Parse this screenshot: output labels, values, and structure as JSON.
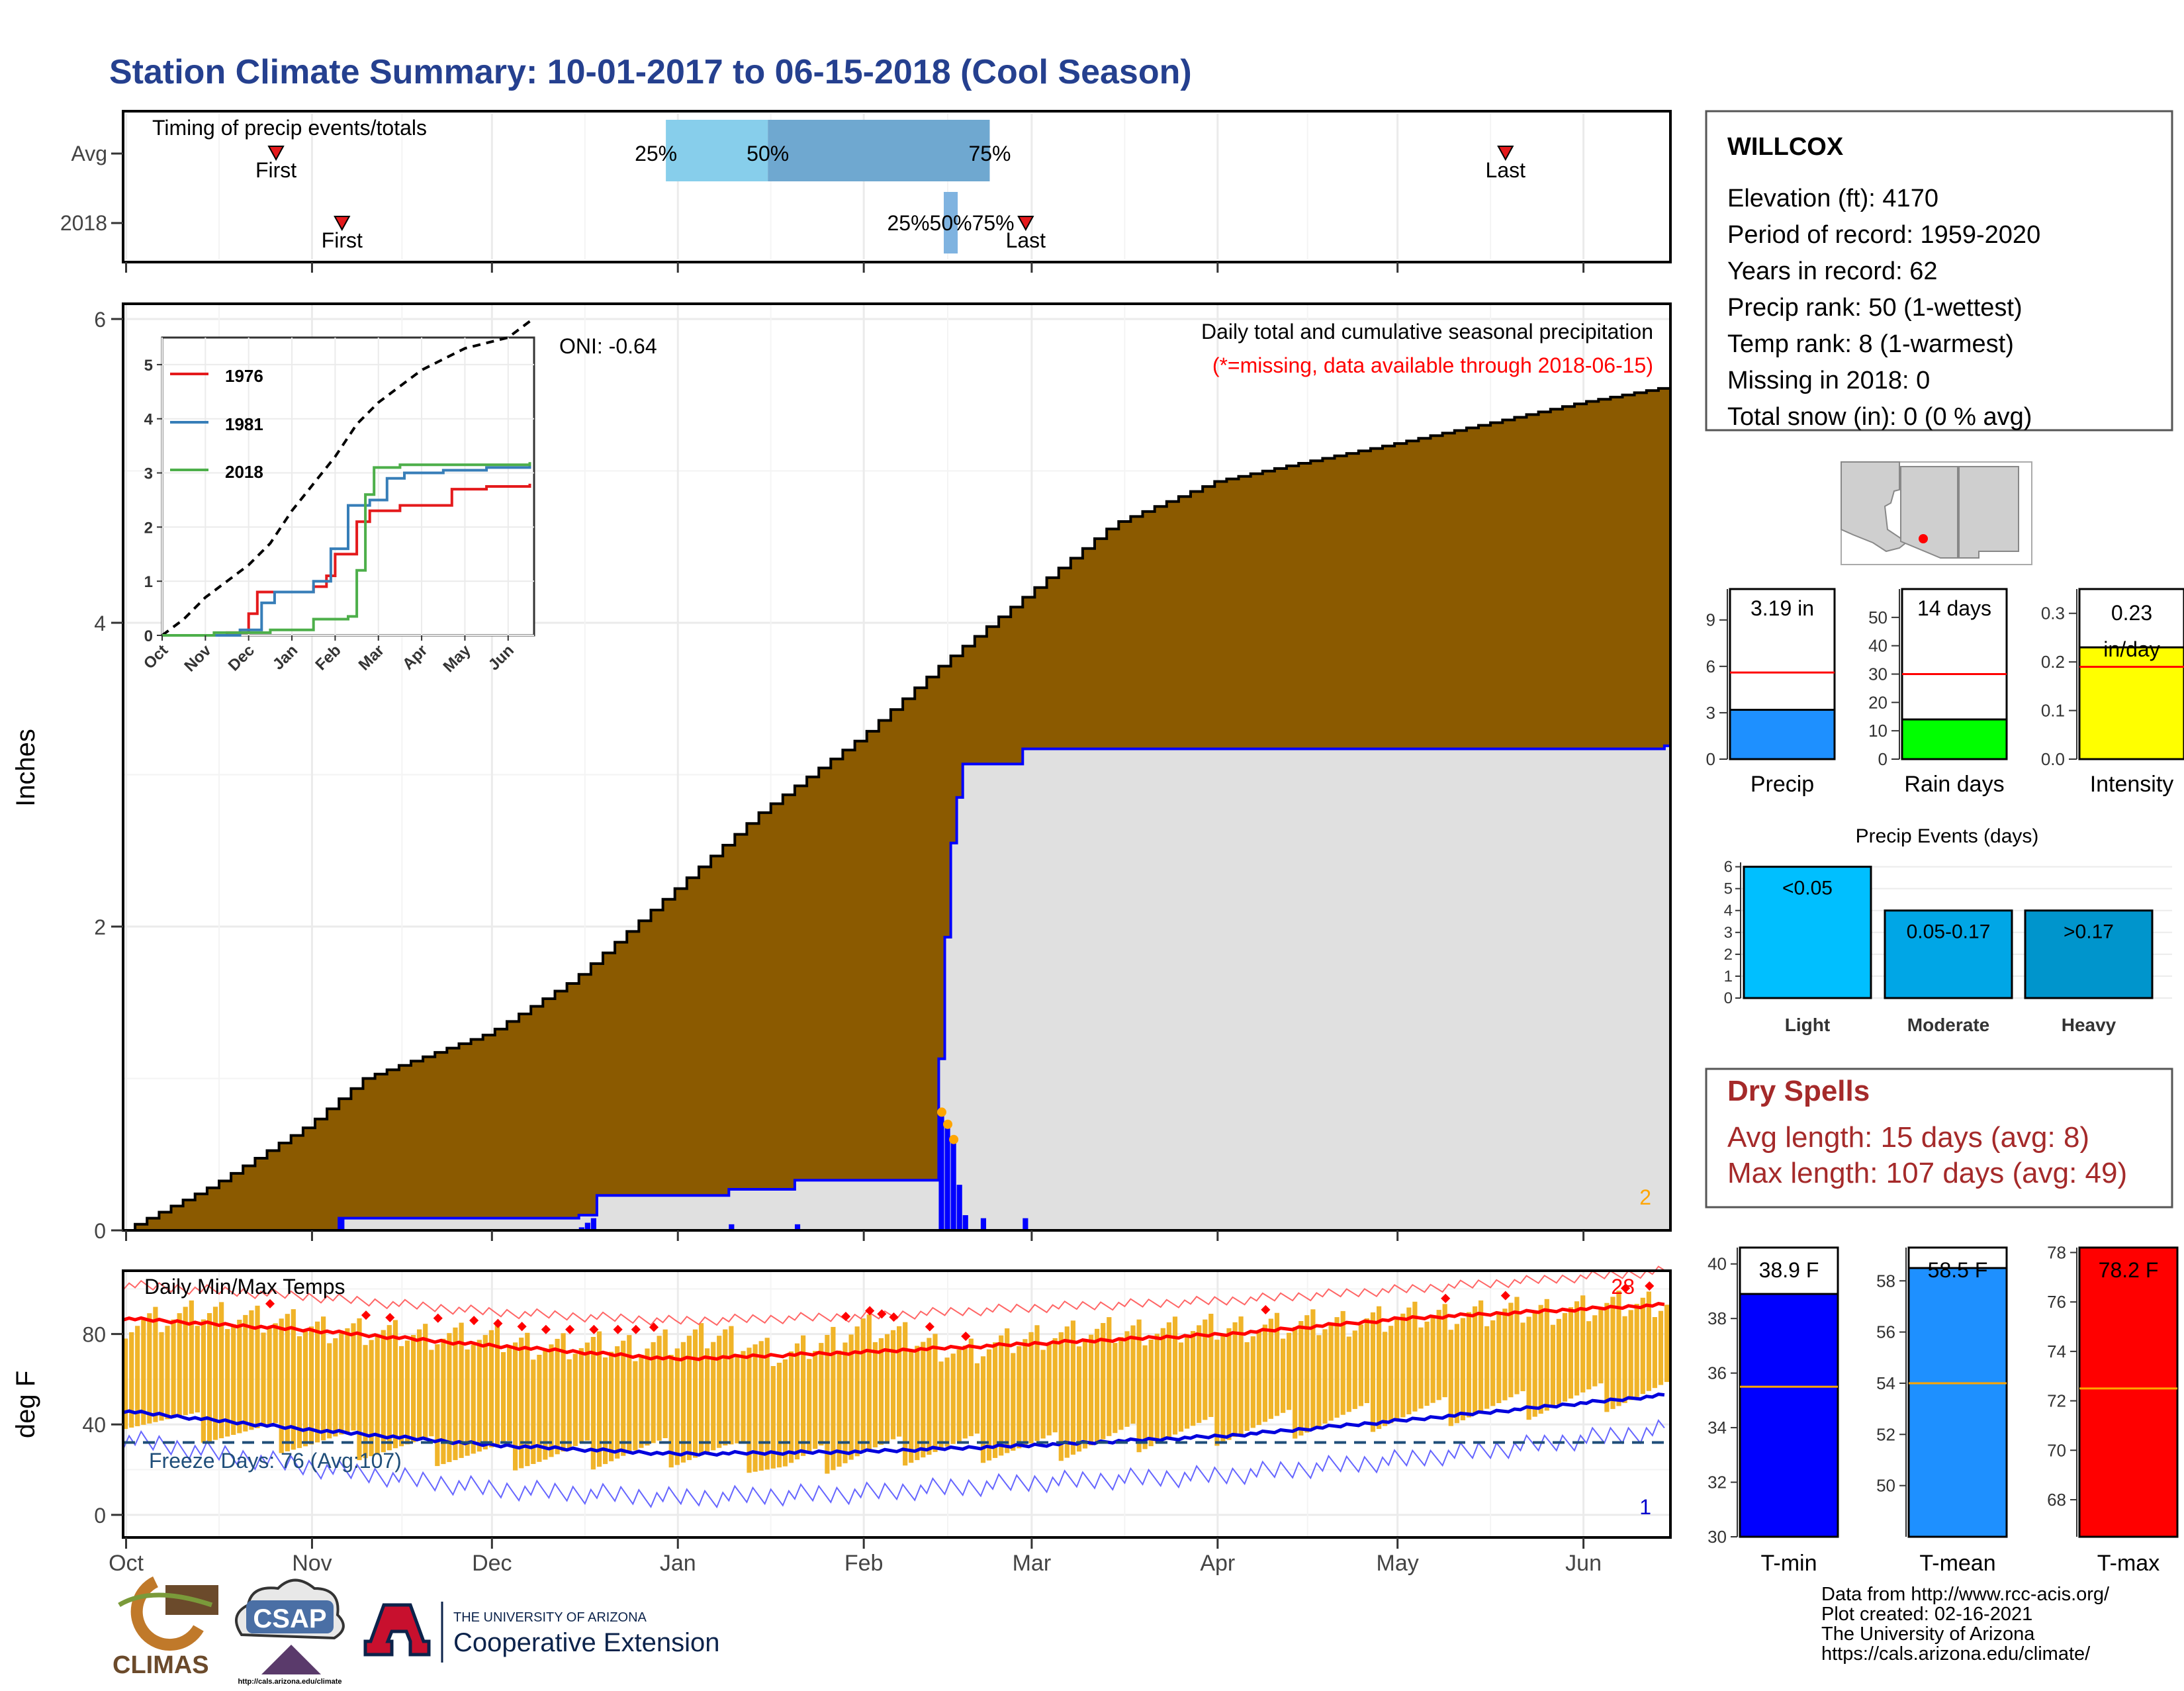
{
  "title": "Station Climate Summary: 10-01-2017 to 06-15-2018 (Cool Season)",
  "timing": {
    "title": "Timing of precip events/totals",
    "rows": [
      "Avg",
      "2018"
    ],
    "avg": {
      "first": "10-26",
      "p25": "12-30",
      "p50": "01-16",
      "p75": "02-22",
      "last": "05-19",
      "p25_label": "25%",
      "p50_label": "50%",
      "p75_label": "75%",
      "first_label": "First",
      "last_label": "Last"
    },
    "y2018": {
      "first": "11-06",
      "p25": "02-15",
      "p50": "02-16",
      "p75": "02-16",
      "last": "02-28",
      "pct_label": "25%50%75%",
      "first_label": "First",
      "last_label": "Last"
    }
  },
  "main_panel": {
    "ylabel": "Inches",
    "yticks": [
      0,
      2,
      4,
      6
    ],
    "legend_line1": "Daily total and cumulative seasonal precipitation",
    "legend_line2": "(*=missing, data available through 2018-06-15)",
    "oni": "ONI: -0.64",
    "corner_count": "2"
  },
  "inset": {
    "yticks": [
      0,
      1,
      2,
      3,
      4,
      5
    ],
    "months": [
      "Oct",
      "Nov",
      "Dec",
      "Jan",
      "Feb",
      "Mar",
      "Apr",
      "May",
      "Jun"
    ],
    "legend": [
      {
        "name": "1976",
        "color": "#e41a1c"
      },
      {
        "name": "1981",
        "color": "#377eb8"
      },
      {
        "name": "2018",
        "color": "#4daf4a"
      }
    ]
  },
  "temp_panel": {
    "title": "Daily Min/Max Temps",
    "ylabel": "deg F",
    "yticks": [
      0,
      40,
      80
    ],
    "freeze_label": "Freeze Days: 76 (Avg:107)",
    "freeze_line": 32,
    "count_top": "28",
    "count_bottom": "1"
  },
  "months": [
    "Oct",
    "Nov",
    "Dec",
    "Jan",
    "Feb",
    "Mar",
    "Apr",
    "May",
    "Jun"
  ],
  "station": {
    "name": "WILLCOX",
    "lines": [
      "Elevation (ft): 4170",
      "Period of record: 1959-2020",
      "Years in record: 62",
      "Precip rank: 50 (1-wettest)",
      "Temp rank: 8 (1-warmest)",
      "Missing in 2018: 0",
      "Total snow (in): 0 (0 % avg)"
    ]
  },
  "precip_bars": [
    {
      "label": "Precip",
      "value": 3.19,
      "avg": 5.6,
      "ymax": 11,
      "ticks": [
        0,
        3,
        6,
        9
      ],
      "text": "3.19 in",
      "color": "#1e90ff"
    },
    {
      "label": "Rain days",
      "value": 14,
      "avg": 30,
      "ymax": 60,
      "ticks": [
        0,
        10,
        20,
        30,
        40,
        50
      ],
      "text": "14 days",
      "color": "#00ff00"
    },
    {
      "label": "Intensity",
      "value": 0.23,
      "avg": 0.19,
      "ymax": 0.35,
      "ticks": [
        0.0,
        0.1,
        0.2,
        0.3
      ],
      "text": "0.23 in/day",
      "color": "#ffff00"
    }
  ],
  "events": {
    "title": "Precip Events (days)",
    "yticks": [
      0,
      1,
      2,
      3,
      4,
      5,
      6
    ],
    "bars": [
      {
        "label": "Light",
        "value": 6,
        "text": "<0.05",
        "color": "#00bfff"
      },
      {
        "label": "Moderate",
        "value": 4,
        "text": "0.05-0.17",
        "color": "#00a6e6"
      },
      {
        "label": "Heavy",
        "value": 4,
        "text": ">0.17",
        "color": "#0095cc"
      }
    ]
  },
  "dry_spells": {
    "title": "Dry Spells",
    "line1": "Avg length: 15 days (avg: 8)",
    "line2": "Max length: 107 days (avg: 49)"
  },
  "temp_bars": [
    {
      "label": "T-min",
      "value": 38.9,
      "avg": 35.5,
      "ymin": 30,
      "ymax": 40.6,
      "ticks": [
        30,
        32,
        34,
        36,
        38,
        40
      ],
      "text": "38.9 F",
      "color": "#0000ff"
    },
    {
      "label": "T-mean",
      "value": 58.5,
      "avg": 54.0,
      "ymin": 48,
      "ymax": 59.3,
      "ticks": [
        50,
        52,
        54,
        56,
        58
      ],
      "text": "58.5 F",
      "color": "#1e90ff"
    },
    {
      "label": "T-max",
      "value": 78.2,
      "avg": 72.5,
      "ymin": 66.5,
      "ymax": 78.2,
      "ticks": [
        68,
        70,
        72,
        74,
        76,
        78
      ],
      "text": "78.2 F",
      "color": "#ff0000"
    }
  ],
  "footer": {
    "lines": [
      "Data from http://www.rcc-acis.org/",
      "Plot created: 02-16-2021",
      "The University of Arizona",
      "https://cals.arizona.edu/climate/"
    ],
    "logo_climas": "CLIMAS",
    "logo_csap": "CSAP",
    "csap_url": "http://cals.arizona.edu/climate",
    "ua_top": "THE UNIVERSITY OF ARIZONA",
    "ua_bottom": "Cooperative Extension"
  },
  "chart_data": {
    "type": "area",
    "season_start": "2017-10-01",
    "season_end": "2018-06-15",
    "avg_cumulative": [
      {
        "date": "2017-10-01",
        "value": 0.0
      },
      {
        "date": "2017-10-16",
        "value": 0.3
      },
      {
        "date": "2017-11-01",
        "value": 0.7
      },
      {
        "date": "2017-11-10",
        "value": 1.0
      },
      {
        "date": "2017-12-01",
        "value": 1.3
      },
      {
        "date": "2017-12-15",
        "value": 1.65
      },
      {
        "date": "2018-01-01",
        "value": 2.25
      },
      {
        "date": "2018-01-15",
        "value": 2.75
      },
      {
        "date": "2018-02-01",
        "value": 3.25
      },
      {
        "date": "2018-02-15",
        "value": 3.75
      },
      {
        "date": "2018-03-01",
        "value": 4.2
      },
      {
        "date": "2018-03-15",
        "value": 4.65
      },
      {
        "date": "2018-04-01",
        "value": 4.93
      },
      {
        "date": "2018-04-15",
        "value": 5.05
      },
      {
        "date": "2018-05-01",
        "value": 5.18
      },
      {
        "date": "2018-05-15",
        "value": 5.3
      },
      {
        "date": "2018-06-01",
        "value": 5.45
      },
      {
        "date": "2018-06-15",
        "value": 5.55
      }
    ],
    "cumulative_2018": [
      {
        "date": "2017-10-01",
        "value": 0.0
      },
      {
        "date": "2017-11-06",
        "value": 0.08
      },
      {
        "date": "2017-12-16",
        "value": 0.1
      },
      {
        "date": "2017-12-19",
        "value": 0.23
      },
      {
        "date": "2018-01-10",
        "value": 0.27
      },
      {
        "date": "2018-01-21",
        "value": 0.33
      },
      {
        "date": "2018-02-12",
        "value": 0.33
      },
      {
        "date": "2018-02-14",
        "value": 1.13
      },
      {
        "date": "2018-02-15",
        "value": 1.93
      },
      {
        "date": "2018-02-16",
        "value": 2.55
      },
      {
        "date": "2018-02-17",
        "value": 2.85
      },
      {
        "date": "2018-02-18",
        "value": 3.07
      },
      {
        "date": "2018-02-28",
        "value": 3.17
      },
      {
        "date": "2018-06-15",
        "value": 3.19
      }
    ],
    "daily_precip_2018": [
      {
        "date": "2017-11-06",
        "value": 0.08
      },
      {
        "date": "2017-12-16",
        "value": 0.02
      },
      {
        "date": "2017-12-17",
        "value": 0.05
      },
      {
        "date": "2017-12-18",
        "value": 0.08
      },
      {
        "date": "2018-01-10",
        "value": 0.04
      },
      {
        "date": "2018-01-21",
        "value": 0.04
      },
      {
        "date": "2018-02-14",
        "value": 0.8
      },
      {
        "date": "2018-02-15",
        "value": 0.72
      },
      {
        "date": "2018-02-16",
        "value": 0.62
      },
      {
        "date": "2018-02-17",
        "value": 0.3
      },
      {
        "date": "2018-02-18",
        "value": 0.1
      },
      {
        "date": "2018-02-21",
        "value": 0.08
      },
      {
        "date": "2018-02-28",
        "value": 0.08
      }
    ],
    "ylim": [
      0,
      6.1
    ],
    "inset": {
      "x_months": [
        "Oct",
        "Nov",
        "Dec",
        "Jan",
        "Feb",
        "Mar",
        "Apr",
        "May",
        "Jun"
      ],
      "ylim": [
        0,
        5.5
      ],
      "avg": [
        [
          0,
          0
        ],
        [
          0.5,
          0.3
        ],
        [
          1,
          0.7
        ],
        [
          1.5,
          1
        ],
        [
          2,
          1.3
        ],
        [
          2.5,
          1.7
        ],
        [
          3,
          2.3
        ],
        [
          3.5,
          2.8
        ],
        [
          4,
          3.3
        ],
        [
          4.5,
          3.9
        ],
        [
          5,
          4.3
        ],
        [
          5.5,
          4.6
        ],
        [
          6,
          4.9
        ],
        [
          6.5,
          5.1
        ],
        [
          7,
          5.3
        ],
        [
          7.5,
          5.4
        ],
        [
          8,
          5.5
        ],
        [
          8.5,
          5.8
        ]
      ],
      "s1976": [
        [
          0,
          0
        ],
        [
          1.5,
          0.05
        ],
        [
          2,
          0.4
        ],
        [
          2.2,
          0.8
        ],
        [
          3,
          0.8
        ],
        [
          3.5,
          0.9
        ],
        [
          3.8,
          1.1
        ],
        [
          4,
          1.5
        ],
        [
          4.3,
          1.5
        ],
        [
          4.5,
          2.1
        ],
        [
          4.8,
          2.3
        ],
        [
          5.5,
          2.4
        ],
        [
          6.5,
          2.4
        ],
        [
          6.7,
          2.7
        ],
        [
          7.5,
          2.75
        ],
        [
          8.5,
          2.8
        ]
      ],
      "s1981": [
        [
          0,
          0
        ],
        [
          1.8,
          0.1
        ],
        [
          2.3,
          0.6
        ],
        [
          2.6,
          0.8
        ],
        [
          3,
          0.8
        ],
        [
          3.5,
          1
        ],
        [
          3.9,
          1.6
        ],
        [
          4.1,
          1.6
        ],
        [
          4.3,
          2.4
        ],
        [
          4.8,
          2.5
        ],
        [
          5.2,
          2.9
        ],
        [
          5.6,
          3
        ],
        [
          6.5,
          3.05
        ],
        [
          7.5,
          3.1
        ],
        [
          8.5,
          3.15
        ]
      ],
      "s2018": [
        [
          0,
          0
        ],
        [
          1.2,
          0.05
        ],
        [
          2.5,
          0.1
        ],
        [
          3.5,
          0.3
        ],
        [
          4.3,
          0.35
        ],
        [
          4.5,
          1.2
        ],
        [
          4.7,
          2.6
        ],
        [
          4.9,
          3.1
        ],
        [
          5.5,
          3.15
        ],
        [
          8.5,
          3.2
        ]
      ]
    },
    "temps": {
      "ylim": [
        -10,
        108
      ],
      "freeze_threshold": 32,
      "avg_max": [
        [
          0,
          87
        ],
        [
          30,
          82
        ],
        [
          61,
          75
        ],
        [
          92,
          69
        ],
        [
          123,
          72
        ],
        [
          153,
          76
        ],
        [
          184,
          80
        ],
        [
          214,
          87
        ],
        [
          257,
          93
        ]
      ],
      "avg_min": [
        [
          0,
          46
        ],
        [
          30,
          38
        ],
        [
          61,
          31
        ],
        [
          92,
          27
        ],
        [
          123,
          28
        ],
        [
          153,
          31
        ],
        [
          184,
          35
        ],
        [
          214,
          42
        ],
        [
          257,
          53
        ]
      ],
      "record_max_approx": [
        [
          0,
          102
        ],
        [
          30,
          97
        ],
        [
          61,
          90
        ],
        [
          92,
          86
        ],
        [
          123,
          88
        ],
        [
          153,
          92
        ],
        [
          184,
          95
        ],
        [
          214,
          100
        ],
        [
          257,
          108
        ]
      ],
      "record_min_approx": [
        [
          0,
          34
        ],
        [
          30,
          22
        ],
        [
          61,
          12
        ],
        [
          92,
          8
        ],
        [
          123,
          10
        ],
        [
          153,
          15
        ],
        [
          184,
          18
        ],
        [
          214,
          25
        ],
        [
          257,
          38
        ]
      ],
      "daily_max_approx": [
        [
          0,
          85
        ],
        [
          15,
          90
        ],
        [
          30,
          84
        ],
        [
          45,
          80
        ],
        [
          55,
          80
        ],
        [
          70,
          75
        ],
        [
          85,
          75
        ],
        [
          100,
          80
        ],
        [
          110,
          70
        ],
        [
          123,
          84
        ],
        [
          140,
          72
        ],
        [
          153,
          80
        ],
        [
          170,
          82
        ],
        [
          184,
          83
        ],
        [
          200,
          85
        ],
        [
          214,
          88
        ],
        [
          230,
          90
        ],
        [
          245,
          92
        ],
        [
          257,
          95
        ]
      ],
      "daily_min_approx": [
        [
          0,
          45
        ],
        [
          15,
          38
        ],
        [
          30,
          33
        ],
        [
          45,
          30
        ],
        [
          55,
          28
        ],
        [
          70,
          26
        ],
        [
          85,
          28
        ],
        [
          100,
          28
        ],
        [
          110,
          22
        ],
        [
          123,
          28
        ],
        [
          140,
          30
        ],
        [
          153,
          30
        ],
        [
          170,
          35
        ],
        [
          184,
          38
        ],
        [
          200,
          42
        ],
        [
          214,
          45
        ],
        [
          230,
          48
        ],
        [
          245,
          52
        ],
        [
          257,
          55
        ]
      ],
      "records_marked": 28
    }
  }
}
